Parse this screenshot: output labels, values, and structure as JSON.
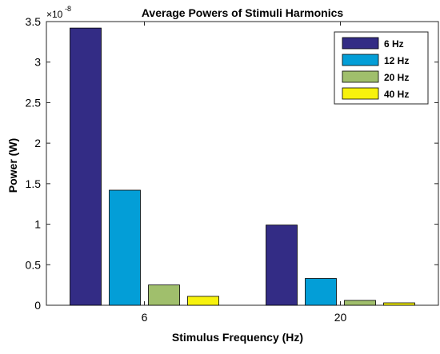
{
  "chart_data": {
    "type": "bar",
    "title": "Average Powers of Stimuli Harmonics",
    "xlabel": "Stimulus Frequency (Hz)",
    "ylabel": "Power (W)",
    "exponent_base": "×10",
    "exponent": "-8",
    "categories": [
      "6",
      "20"
    ],
    "ylim": [
      0,
      3.5
    ],
    "yticks": [
      0,
      0.5,
      1,
      1.5,
      2,
      2.5,
      3,
      3.5
    ],
    "ytick_labels": [
      "0",
      "0.5",
      "1",
      "1.5",
      "2",
      "2.5",
      "3",
      "3.5"
    ],
    "legend_position": "top-right",
    "grid": false,
    "series": [
      {
        "name": "6 Hz",
        "color": "#332c85",
        "values": [
          3.42,
          0.99
        ]
      },
      {
        "name": "12 Hz",
        "color": "#039ed7",
        "values": [
          1.42,
          0.33
        ]
      },
      {
        "name": "20 Hz",
        "color": "#a0bf6c",
        "values": [
          0.25,
          0.06
        ]
      },
      {
        "name": "40 Hz",
        "color": "#f7f20d",
        "values": [
          0.11,
          0.03
        ]
      }
    ]
  }
}
